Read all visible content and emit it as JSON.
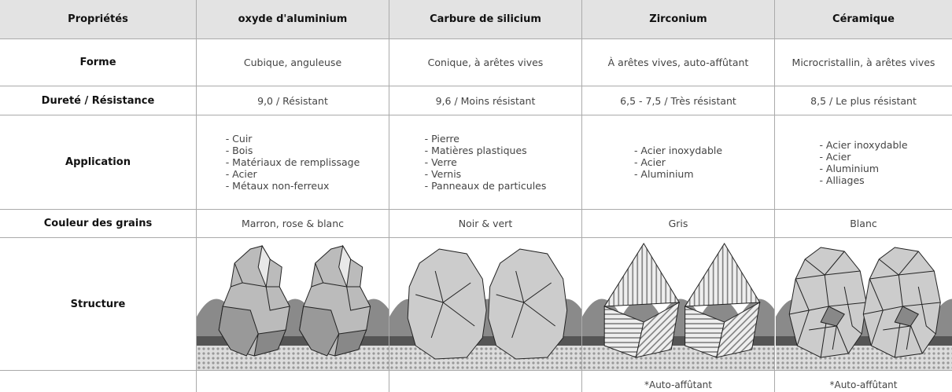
{
  "table": {
    "header": [
      "Propriétés",
      "oxyde d'aluminium",
      "Carbure de silicium",
      "Zirconium",
      "Céramique"
    ],
    "rows": [
      {
        "label": "Forme",
        "cells": [
          "Cubique, anguleuse",
          "Conique, à arêtes vives",
          "À arêtes vives, auto-affûtant",
          "Microcristallin, à arêtes vives"
        ]
      },
      {
        "label": "Dureté / Résistance",
        "cells": [
          "9,0 / Résistant",
          "9,6 / Moins résistant",
          "6,5 - 7,5 / Très résistant",
          "8,5 / Le plus résistant"
        ]
      },
      {
        "label": "Application",
        "cells": [
          [
            "- Cuir",
            "- Bois",
            "- Matériaux de remplissage",
            "- Acier",
            "- Métaux non-ferreux"
          ],
          [
            "- Pierre",
            "- Matières plastiques",
            "- Verre",
            "- Vernis",
            "- Panneaux de particules"
          ],
          [
            "- Acier inoxydable",
            "- Acier",
            "- Aluminium"
          ],
          [
            "- Acier inoxydable",
            "- Acier",
            "- Aluminium",
            "- Alliages"
          ]
        ]
      },
      {
        "label": "Couleur des grains",
        "cells": [
          "Marron, rose & blanc",
          "Noir & vert",
          "Gris",
          "Blanc"
        ]
      },
      {
        "label": "Structure"
      }
    ],
    "notes": [
      "*Auto-affûtant",
      "*Auto-affûtant"
    ]
  }
}
